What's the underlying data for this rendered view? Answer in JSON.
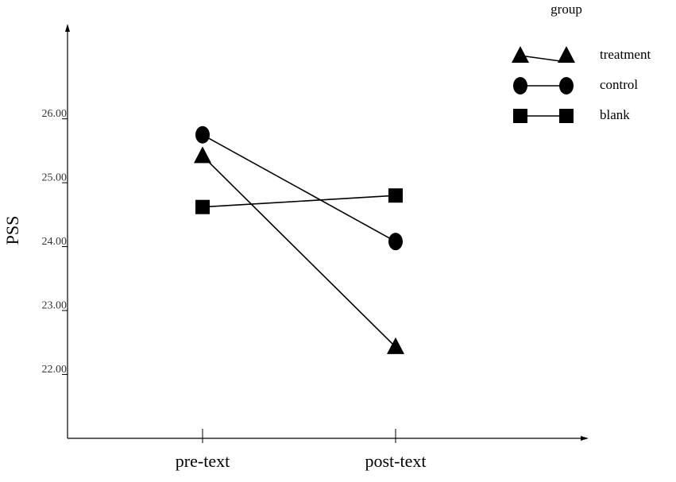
{
  "chart_data": {
    "type": "line",
    "y_label": "PSS",
    "legend_title": "group",
    "legend_position": "upper right",
    "categories": [
      "pre-text",
      "post-text"
    ],
    "series": [
      {
        "name": "treatment",
        "color": "#000000",
        "marker": "triangle",
        "values": [
          25.42,
          22.43
        ]
      },
      {
        "name": "control",
        "color": "#000000",
        "marker": "circle",
        "values": [
          25.75,
          24.08
        ]
      },
      {
        "name": "blank",
        "color": "#000000",
        "marker": "square",
        "values": [
          24.62,
          24.8
        ]
      }
    ],
    "ylim": [
      21.0,
      27.4
    ],
    "yticks": [
      {
        "value": 22,
        "label": "22.00"
      },
      {
        "value": 23,
        "label": "23.00"
      },
      {
        "value": 24,
        "label": "24.00"
      },
      {
        "value": 25,
        "label": "25.00"
      },
      {
        "value": 26,
        "label": "26.00"
      }
    ]
  }
}
